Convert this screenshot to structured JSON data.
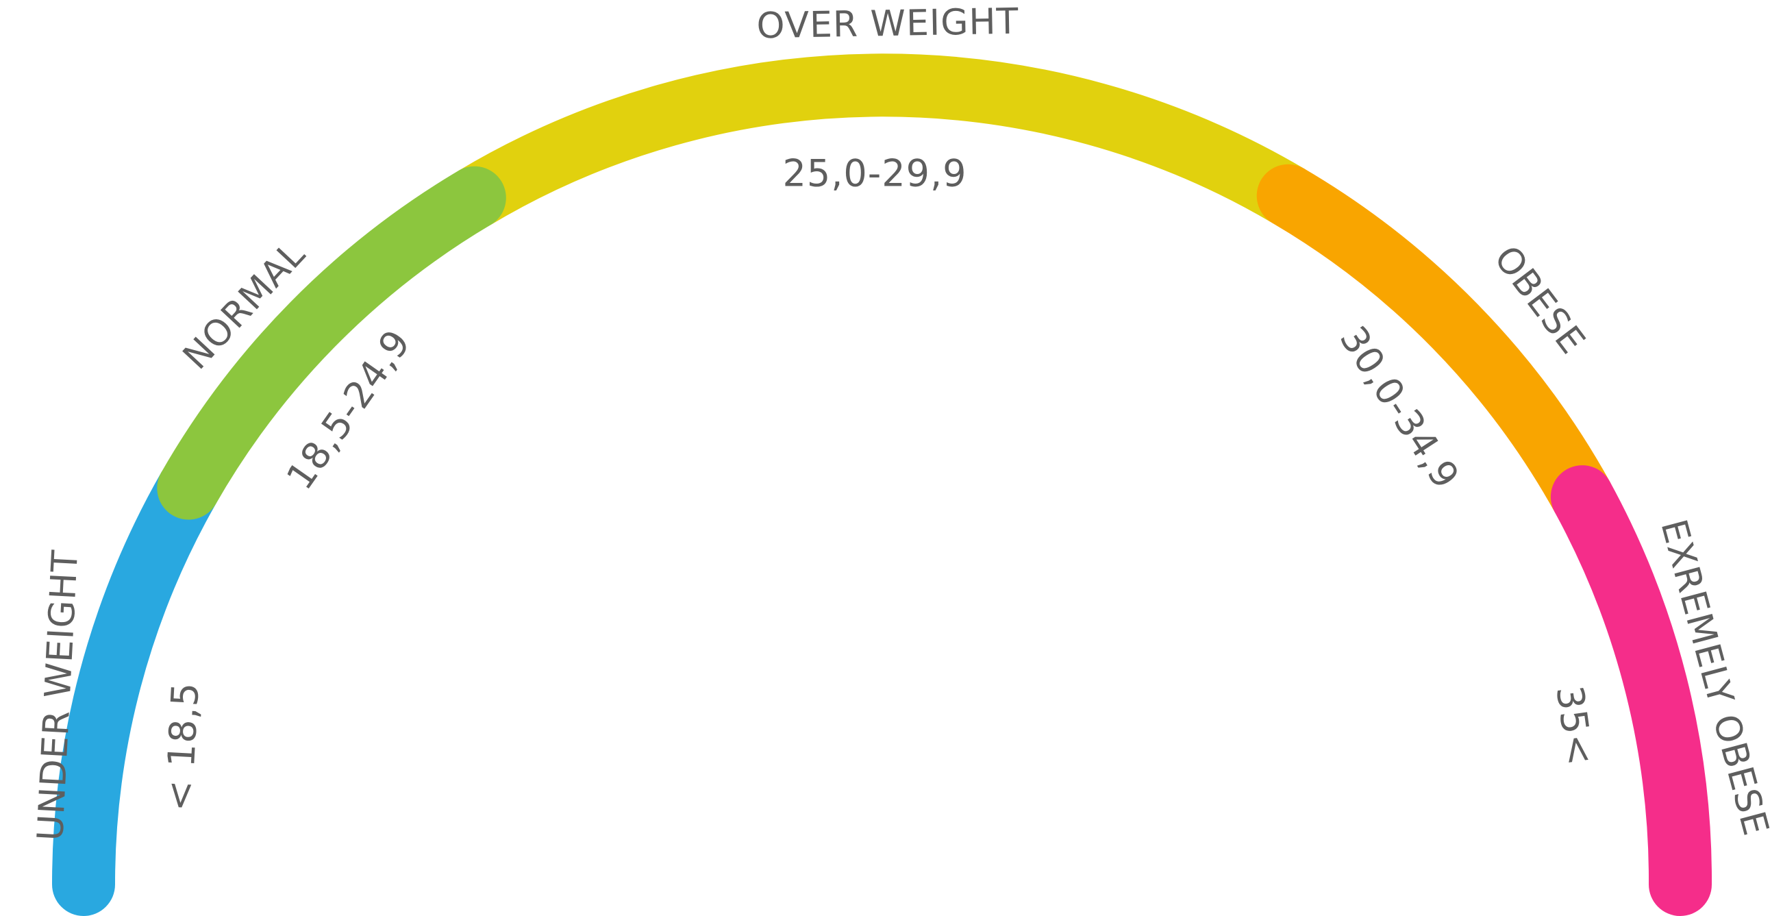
{
  "segments": [
    {
      "key": "under",
      "category": "UNDER WEIGHT",
      "range": "< 18,5",
      "color": "#29a8e0"
    },
    {
      "key": "normal",
      "category": "NORMAL",
      "range": "18,5-24,9",
      "color": "#8cc63e"
    },
    {
      "key": "over",
      "category": "OVER WEIGHT",
      "range": "25,0-29,9",
      "color": "#e1d10e"
    },
    {
      "key": "obese",
      "category": "OBESE",
      "range": "30,0-34,9",
      "color": "#f9a500"
    },
    {
      "key": "extreme",
      "category": "EXREMELY OBESE",
      "range": "35<",
      "color": "#f52d8a"
    }
  ]
}
